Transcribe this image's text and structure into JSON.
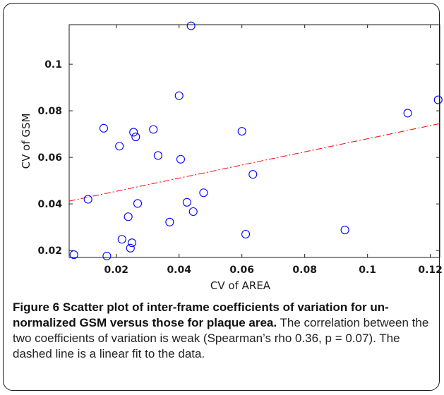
{
  "chart_data": {
    "type": "scatter",
    "xlabel": "CV of AREA",
    "ylabel": "CV of GSM",
    "xlim": [
      0.005,
      0.123
    ],
    "ylim": [
      0.017,
      0.117
    ],
    "xticks": [
      0.02,
      0.04,
      0.06,
      0.08,
      0.1,
      0.12
    ],
    "xtick_labels": [
      "0.02",
      "0.04",
      "0.06",
      "0.08",
      "0.1",
      "0.12"
    ],
    "yticks": [
      0.02,
      0.04,
      0.06,
      0.08,
      0.1
    ],
    "ytick_labels": [
      "0.02",
      "0.04",
      "0.06",
      "0.08",
      "0.1"
    ],
    "grid": false,
    "marker_color": "#0000ff",
    "fit_color": "#ff0000",
    "points": [
      {
        "x": 0.0065,
        "y": 0.0182
      },
      {
        "x": 0.011,
        "y": 0.042
      },
      {
        "x": 0.016,
        "y": 0.0725
      },
      {
        "x": 0.017,
        "y": 0.0176
      },
      {
        "x": 0.021,
        "y": 0.0648
      },
      {
        "x": 0.0218,
        "y": 0.0248
      },
      {
        "x": 0.0238,
        "y": 0.0345
      },
      {
        "x": 0.0245,
        "y": 0.021
      },
      {
        "x": 0.025,
        "y": 0.0233
      },
      {
        "x": 0.0255,
        "y": 0.0708
      },
      {
        "x": 0.0262,
        "y": 0.0688
      },
      {
        "x": 0.0268,
        "y": 0.0402
      },
      {
        "x": 0.0318,
        "y": 0.072
      },
      {
        "x": 0.0333,
        "y": 0.0608
      },
      {
        "x": 0.037,
        "y": 0.0322
      },
      {
        "x": 0.04,
        "y": 0.0865
      },
      {
        "x": 0.0405,
        "y": 0.0592
      },
      {
        "x": 0.0425,
        "y": 0.0407
      },
      {
        "x": 0.0438,
        "y": 0.1165
      },
      {
        "x": 0.0445,
        "y": 0.0367
      },
      {
        "x": 0.0478,
        "y": 0.0448
      },
      {
        "x": 0.06,
        "y": 0.0712
      },
      {
        "x": 0.0612,
        "y": 0.027
      },
      {
        "x": 0.0635,
        "y": 0.0527
      },
      {
        "x": 0.0928,
        "y": 0.0288
      },
      {
        "x": 0.1128,
        "y": 0.079
      },
      {
        "x": 0.1225,
        "y": 0.0847
      }
    ],
    "fit_line": {
      "style": "dash-dot",
      "x": [
        0.005,
        0.123
      ],
      "y": [
        0.0412,
        0.0745
      ]
    }
  },
  "caption": {
    "figure_label": "Figure 6",
    "title": "Scatter plot of inter-frame coefficients of variation for un-normalized GSM versus those for plaque area.",
    "body": "The correlation between the two coefficients of variation is weak (Spearman’s rho 0.36, p = 0.07). The dashed line is a linear fit to the data."
  }
}
